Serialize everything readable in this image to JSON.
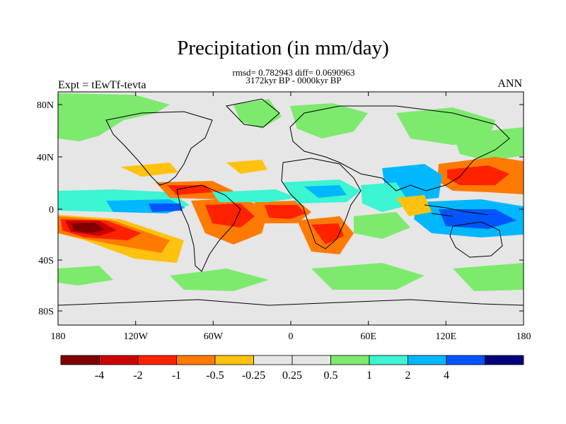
{
  "title": "Precipitation (in mm/day)",
  "stats_line": "rmsd= 0.782943 diff= 0.0690963",
  "period_line": "3172kyr BP - 0000kyr BP",
  "experiment_label": "Expt = tEwTf-tevta",
  "season_label": "ANN",
  "lat_ticks": [
    "80N",
    "40N",
    "0",
    "40S",
    "80S"
  ],
  "lon_ticks": [
    "180",
    "120W",
    "60W",
    "0",
    "60E",
    "120E",
    "180"
  ],
  "colorbar": {
    "colors": [
      "#800000",
      "#cc0000",
      "#ff2200",
      "#ff7a00",
      "#ffc20e",
      "#e6e6e6",
      "#e6e6e6",
      "#7dea6e",
      "#3cf5d2",
      "#00b8ff",
      "#0055ff",
      "#00007a"
    ],
    "labels": [
      "-4",
      "-2",
      "-1",
      "-0.5",
      "-0.25",
      "0.25",
      "0.5",
      "1",
      "2",
      "4"
    ]
  },
  "palette": {
    "neutral": "#e6e6e6",
    "dry_strong": "#800000",
    "dry": "#cc0000",
    "dry_mid": "#ff2200",
    "dry_light": "#ff7a00",
    "dry_faint": "#ffc20e",
    "wet_faint": "#7dea6e",
    "wet_light": "#3cf5d2",
    "wet_mid": "#00b8ff",
    "wet": "#0055ff",
    "wet_strong": "#00007a"
  }
}
